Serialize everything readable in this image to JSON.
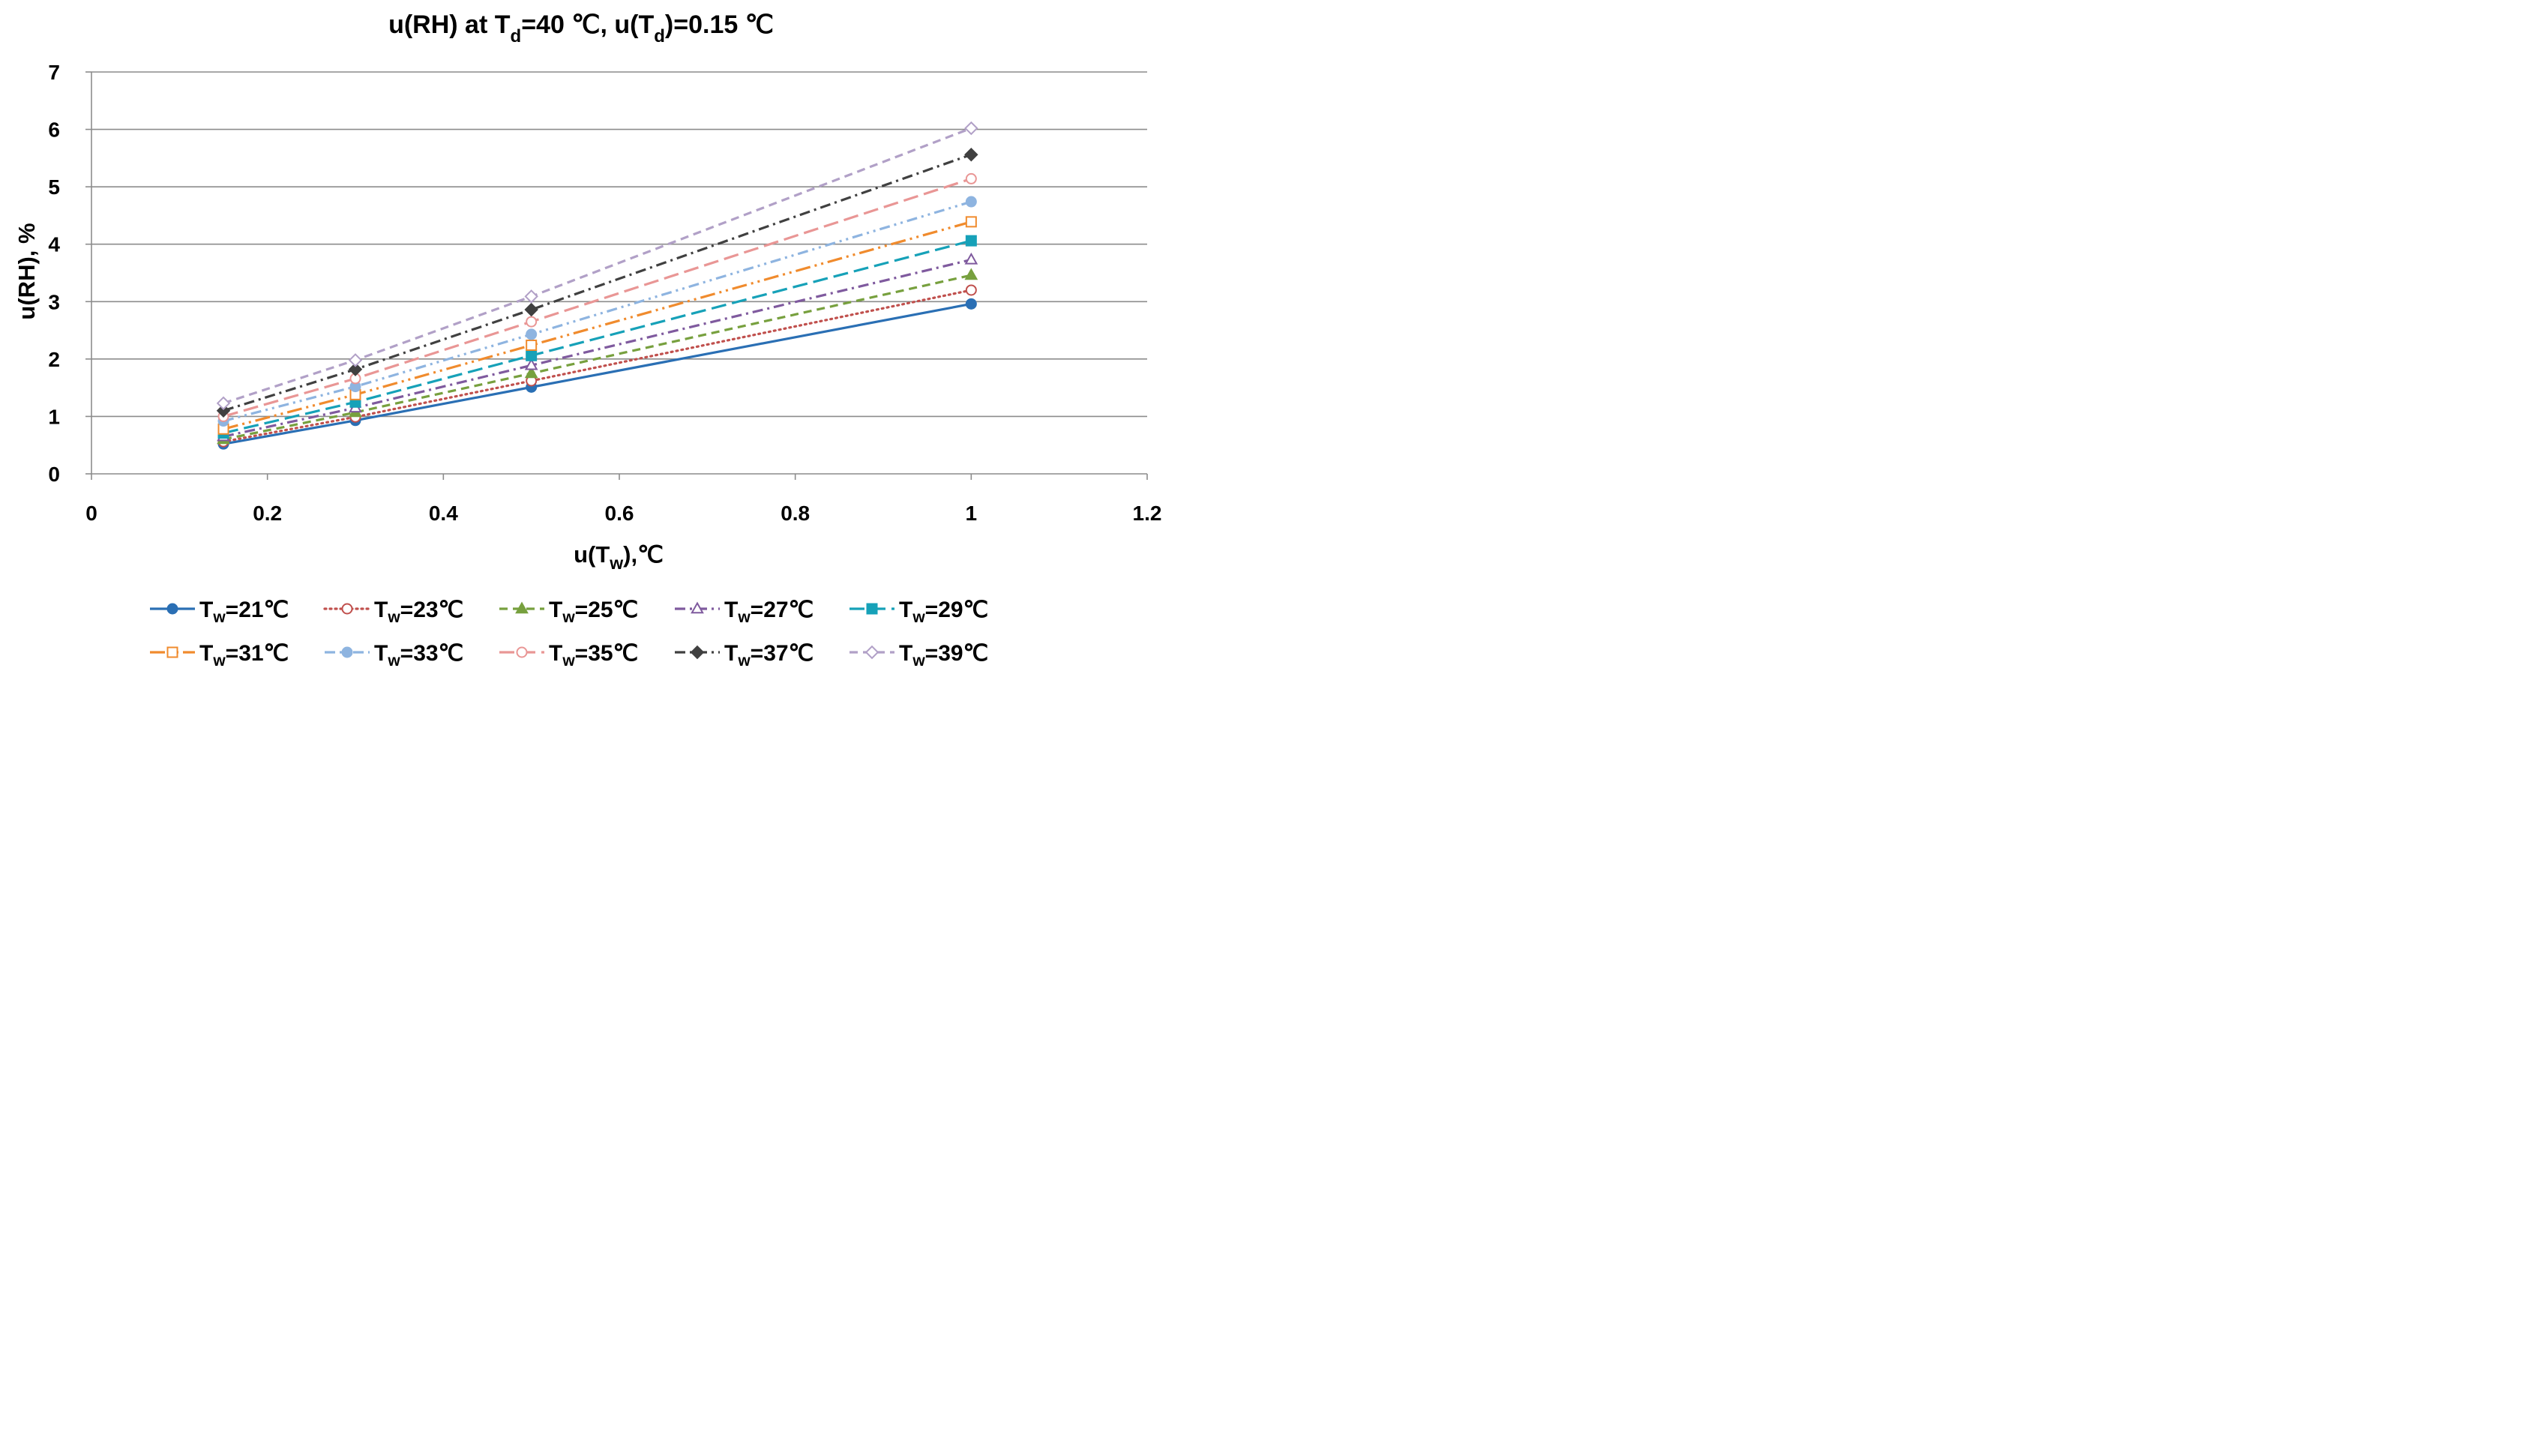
{
  "chart_data": {
    "type": "line",
    "title": {
      "main": "u(RH) at T",
      "sub1": "d",
      "mid": "=40 ℃, u(T",
      "sub2": "d",
      "end": ")=0.15 ℃"
    },
    "xlabel": {
      "main": "u(T",
      "sub": "w",
      "end": "),℃"
    },
    "ylabel": "u(RH), %",
    "xlim": [
      0,
      1.2
    ],
    "ylim": [
      0,
      7
    ],
    "x_ticks": [
      "0",
      "0.2",
      "0.4",
      "0.6",
      "0.8",
      "1",
      "1.2"
    ],
    "y_ticks": [
      "0",
      "1",
      "2",
      "3",
      "4",
      "5",
      "6",
      "7"
    ],
    "grid": "horizontal",
    "legend_position": "bottom",
    "x": [
      0.15,
      0.3,
      0.5,
      1
    ],
    "series": [
      {
        "name": {
          "main": "T",
          "sub": "w",
          "end": "=21℃"
        },
        "values": [
          0.52,
          0.93,
          1.51,
          2.96
        ],
        "color": "#2a6fb4",
        "dash": "solid",
        "marker": "circle",
        "marker_fill": "filled"
      },
      {
        "name": {
          "main": "T",
          "sub": "w",
          "end": "=23℃"
        },
        "values": [
          0.56,
          0.99,
          1.62,
          3.2
        ],
        "color": "#c0504d",
        "dash": "dot",
        "marker": "circle",
        "marker_fill": "open"
      },
      {
        "name": {
          "main": "T",
          "sub": "w",
          "end": "=25℃"
        },
        "values": [
          0.6,
          1.07,
          1.75,
          3.46
        ],
        "color": "#77a03e",
        "dash": "dash",
        "marker": "triangle",
        "marker_fill": "filled"
      },
      {
        "name": {
          "main": "T",
          "sub": "w",
          "end": "=27℃"
        },
        "values": [
          0.65,
          1.15,
          1.89,
          3.73
        ],
        "color": "#7f5a9e",
        "dash": "dashdot",
        "marker": "triangle",
        "marker_fill": "open"
      },
      {
        "name": {
          "main": "T",
          "sub": "w",
          "end": "=29℃"
        },
        "values": [
          0.71,
          1.25,
          2.06,
          4.06
        ],
        "color": "#16a1b8",
        "dash": "longdash",
        "marker": "square",
        "marker_fill": "filled"
      },
      {
        "name": {
          "main": "T",
          "sub": "w",
          "end": "=31℃"
        },
        "values": [
          0.78,
          1.38,
          2.24,
          4.39
        ],
        "color": "#f08b2d",
        "dash": "longdashdotdot",
        "marker": "square",
        "marker_fill": "open"
      },
      {
        "name": {
          "main": "T",
          "sub": "w",
          "end": "=33℃"
        },
        "values": [
          0.92,
          1.52,
          2.43,
          4.74
        ],
        "color": "#8eb4e0",
        "dash": "dashdotdot",
        "marker": "circle",
        "marker_fill": "filled"
      },
      {
        "name": {
          "main": "T",
          "sub": "w",
          "end": "=35℃"
        },
        "values": [
          1.0,
          1.66,
          2.65,
          5.14
        ],
        "color": "#e99695",
        "dash": "longdash",
        "marker": "circle",
        "marker_fill": "open"
      },
      {
        "name": {
          "main": "T",
          "sub": "w",
          "end": "=37℃"
        },
        "values": [
          1.1,
          1.82,
          2.86,
          5.56
        ],
        "color": "#404040",
        "dash": "dashdot",
        "marker": "diamond",
        "marker_fill": "filled"
      },
      {
        "name": {
          "main": "T",
          "sub": "w",
          "end": "=39℃"
        },
        "values": [
          1.23,
          1.98,
          3.09,
          6.02
        ],
        "color": "#b1a0c7",
        "dash": "dash",
        "marker": "diamond",
        "marker_fill": "open"
      }
    ]
  }
}
